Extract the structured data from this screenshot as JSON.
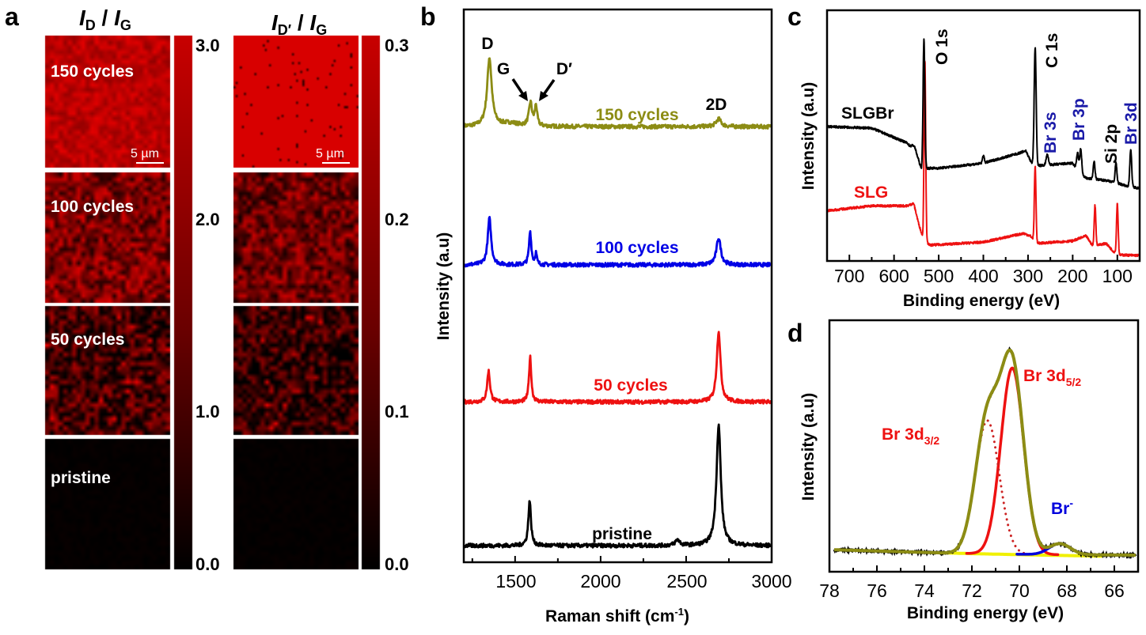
{
  "panels": {
    "a": "a",
    "b": "b",
    "c": "c",
    "d": "d"
  },
  "chart_data": [
    {
      "type": "heatmap",
      "panel": "a",
      "maps": [
        {
          "title_main": "I",
          "title_sub1": "D",
          "title_sep": " / ",
          "title_main2": "I",
          "title_sub2": "G",
          "colorbar": {
            "range": [
              0,
              3
            ],
            "ticks": [
              "3.0",
              "2.0",
              "1.0",
              "0.0"
            ],
            "colors": [
              "#000000",
              "#e00000"
            ]
          },
          "scale_bar": "5 µm",
          "rows": [
            {
              "label": "150 cycles",
              "mean": 2.4
            },
            {
              "label": "100 cycles",
              "mean": 1.6
            },
            {
              "label": "50 cycles",
              "mean": 1.0
            },
            {
              "label": "pristine",
              "mean": 0.05
            }
          ]
        },
        {
          "title_main": "I",
          "title_sub1": "D′",
          "title_sep": " / ",
          "title_main2": "I",
          "title_sub2": "G",
          "colorbar": {
            "range": [
              0,
              0.3
            ],
            "ticks": [
              "0.3",
              "0.2",
              "0.1",
              "0.0"
            ],
            "colors": [
              "#000000",
              "#e00000"
            ]
          },
          "scale_bar": "5 µm",
          "rows": [
            {
              "label": "",
              "mean": 0.27
            },
            {
              "label": "",
              "mean": 0.14
            },
            {
              "label": "",
              "mean": 0.07
            },
            {
              "label": "",
              "mean": 0.005
            }
          ]
        }
      ]
    },
    {
      "type": "line",
      "panel": "b",
      "xlabel": "Raman shift (cm",
      "xlabel_sup": "-1",
      "xlabel_end": ")",
      "ylabel": "Intensity (a.u)",
      "xlim": [
        1200,
        3000
      ],
      "ylim": [
        0,
        100
      ],
      "xticks": [
        "1500",
        "2000",
        "2500",
        "3000"
      ],
      "peak_labels": {
        "D": "D",
        "G": "G",
        "Dp": "D′",
        "2D": "2D"
      },
      "series": [
        {
          "name": "150 cycles",
          "color": "#8c8c14",
          "baseline": 78.8,
          "peaks": [
            [
              1350,
              12.4,
              16
            ],
            [
              1590,
              4.2,
              11
            ],
            [
              1622,
              3.6,
              8
            ],
            [
              2690,
              1.4,
              18
            ],
            [
              1470,
              0.6,
              60
            ]
          ]
        },
        {
          "name": "100 cycles",
          "color": "#0000e6",
          "baseline": 53.8,
          "peaks": [
            [
              1350,
              8.4,
              12
            ],
            [
              1588,
              6.0,
              8
            ],
            [
              1622,
              2.0,
              6
            ],
            [
              2690,
              4.9,
              15
            ]
          ]
        },
        {
          "name": "50 cycles",
          "color": "#ee1111",
          "baseline": 29.0,
          "peaks": [
            [
              1345,
              5.6,
              10
            ],
            [
              1588,
              8.1,
              8
            ],
            [
              2690,
              12.8,
              13
            ]
          ]
        },
        {
          "name": "pristine",
          "color": "#000000",
          "baseline": 3.0,
          "peaks": [
            [
              1585,
              8.2,
              9
            ],
            [
              2450,
              1.0,
              16
            ],
            [
              2690,
              21.9,
              15
            ]
          ]
        }
      ]
    },
    {
      "type": "line",
      "panel": "c",
      "xlabel": "Binding energy (eV)",
      "ylabel": "Intensity (a.u)",
      "xlim": [
        750,
        50
      ],
      "ylim": [
        0,
        100
      ],
      "xticks": [
        "700",
        "600",
        "500",
        "400",
        "300",
        "200",
        "100"
      ],
      "annotations": [
        {
          "text": "O 1s",
          "color": "#000000"
        },
        {
          "text": "C 1s",
          "color": "#000000"
        },
        {
          "text": "Br 3s",
          "color": "#1a1aa8"
        },
        {
          "text": "Br 3p",
          "color": "#1a1aa8"
        },
        {
          "text": "Si 2p",
          "color": "#000000"
        },
        {
          "text": "Br 3d",
          "color": "#1a1aa8"
        }
      ],
      "series": [
        {
          "name": "SLGBr",
          "color": "#000000",
          "baseline": [
            [
              750,
              53.6
            ],
            [
              650,
              53
            ],
            [
              570,
              47
            ],
            [
              545,
              40
            ],
            [
              538,
              36
            ],
            [
              525,
              37
            ],
            [
              500,
              37
            ],
            [
              400,
              39
            ],
            [
              320,
              43
            ],
            [
              305,
              44
            ],
            [
              292,
              39
            ],
            [
              280,
              38
            ],
            [
              200,
              39
            ],
            [
              185,
              35
            ],
            [
              170,
              33
            ],
            [
              120,
              32
            ],
            [
              80,
              30
            ],
            [
              50,
              29
            ]
          ],
          "peaks": [
            [
              555,
              3,
              5
            ],
            [
              533,
              52,
              2
            ],
            [
              400,
              3,
              2
            ],
            [
              284,
              47,
              2.2
            ],
            [
              257,
              4,
              2.5
            ],
            [
              189,
              7,
              2.2
            ],
            [
              182,
              10,
              2.2
            ],
            [
              152,
              7,
              2
            ],
            [
              103,
              8,
              2
            ],
            [
              70,
              15,
              2
            ]
          ]
        },
        {
          "name": "SLG",
          "color": "#ee1111",
          "baseline": [
            [
              750,
              20
            ],
            [
              650,
              22
            ],
            [
              570,
              22
            ],
            [
              556,
              23
            ],
            [
              545,
              15
            ],
            [
              535,
              9
            ],
            [
              520,
              6.3
            ],
            [
              400,
              7.5
            ],
            [
              310,
              11
            ],
            [
              295,
              10
            ],
            [
              280,
              7
            ],
            [
              200,
              8
            ],
            [
              170,
              10
            ],
            [
              155,
              6
            ],
            [
              125,
              7
            ],
            [
              110,
              4
            ],
            [
              95,
              2.4
            ],
            [
              50,
              2.2
            ]
          ],
          "peaks": [
            [
              531,
              72,
              1.8
            ],
            [
              284,
              30,
              1.8
            ],
            [
              150,
              16,
              1.8
            ],
            [
              100,
              20,
              1.8
            ]
          ]
        }
      ]
    },
    {
      "type": "line",
      "panel": "d",
      "xlabel": "Binding energy (eV)",
      "ylabel": "Intensity (a.u)",
      "xlim": [
        78,
        65
      ],
      "ylim": [
        0,
        100
      ],
      "xticks": [
        "78",
        "76",
        "74",
        "72",
        "70",
        "68",
        "66"
      ],
      "components": [
        {
          "name": "Br 3d",
          "sub": "5/2",
          "color": "#ee1111",
          "style": "solid",
          "center": 70.3,
          "height": 74,
          "sigma": 0.48
        },
        {
          "name": "Br 3d",
          "sub": "3/2",
          "color": "#cc2222",
          "style": "dotted",
          "center": 71.35,
          "height": 53,
          "sigma": 0.5
        },
        {
          "name": "Br",
          "sup": "-",
          "color": "#0000dd",
          "style": "solid",
          "center": 68.3,
          "height": 4.4,
          "sigma": 0.45
        }
      ],
      "background": {
        "color": "#f0f000",
        "points": [
          [
            73.5,
            7.6
          ],
          [
            72,
            7.2
          ],
          [
            69,
            6.6
          ],
          [
            66.5,
            6.2
          ]
        ]
      },
      "envelope_color": "#8c8c14",
      "data_color": "#000000",
      "baseline": [
        [
          78,
          8.8
        ],
        [
          74,
          7.7
        ],
        [
          73,
          7.4
        ],
        [
          69,
          6.8
        ],
        [
          65,
          6.6
        ]
      ]
    }
  ]
}
